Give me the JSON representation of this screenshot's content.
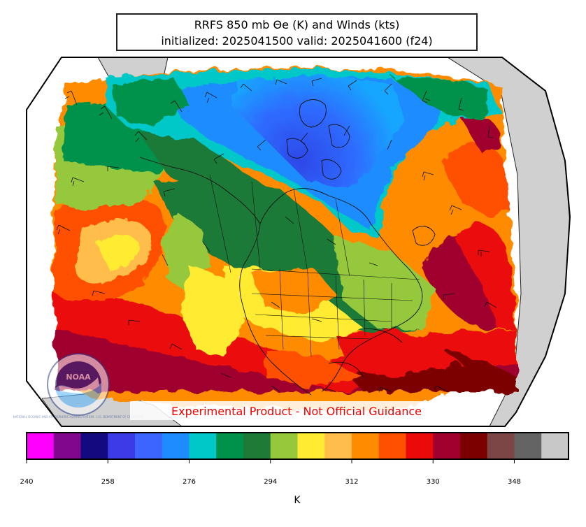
{
  "title": {
    "line1": "RRFS 850 mb Θe (K) and Winds (kts)",
    "line2": "initialized: 2025041500 valid: 2025041600 (f24)"
  },
  "watermark": "Experimental Product - Not Official Guidance",
  "logo_text": {
    "center": "NOAA",
    "ring": "NATIONAL OCEANIC AND ATMOSPHERIC ADMINISTRATION · U.S. DEPARTMENT OF COMMERCE"
  },
  "colorbar": {
    "units": "K",
    "ticks": [
      "240",
      "258",
      "276",
      "294",
      "312",
      "330",
      "348"
    ],
    "colors": [
      "#ff00ff",
      "#80088c",
      "#140a80",
      "#3c3ce6",
      "#3c64ff",
      "#1e8cff",
      "#00c8c8",
      "#00914b",
      "#1e7a37",
      "#96c83c",
      "#ffeb32",
      "#ffbe4b",
      "#ff8c00",
      "#ff5000",
      "#eb0a0a",
      "#a0002d",
      "#7d0000",
      "#7d4646",
      "#646464",
      "#c8c8c8"
    ]
  }
}
